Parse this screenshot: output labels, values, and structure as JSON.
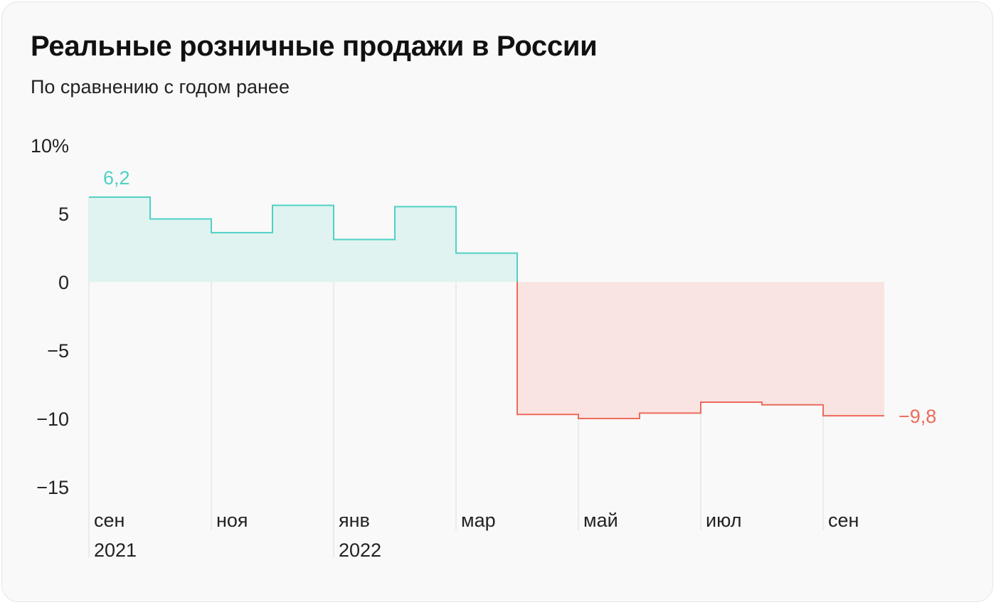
{
  "header": {
    "title": "Реальные розничные продажи в России",
    "subtitle": "По сравнению с годом ранее"
  },
  "colors": {
    "positive_line": "#4fd1c5",
    "positive_fill": "#e0f3f0",
    "negative_line": "#ee6a5c",
    "negative_fill": "#f9e4e2",
    "gridline": "#dddddd",
    "axis_text": "#222222"
  },
  "chart_data": {
    "type": "area",
    "step": true,
    "title": "Реальные розничные продажи в России",
    "subtitle": "По сравнению с годом ранее",
    "unit": "%",
    "x": [
      "2021-09",
      "2021-10",
      "2021-11",
      "2021-12",
      "2022-01",
      "2022-02",
      "2022-03",
      "2022-04",
      "2022-05",
      "2022-06",
      "2022-07",
      "2022-08",
      "2022-09"
    ],
    "values": [
      6.2,
      4.6,
      3.6,
      5.6,
      3.1,
      5.5,
      2.1,
      -9.7,
      -10.0,
      -9.6,
      -8.8,
      -9.0,
      -9.8
    ],
    "ylim": [
      -17,
      10
    ],
    "yticks": [
      10,
      5,
      0,
      -5,
      -10,
      -15
    ],
    "ytick_labels": [
      "10%",
      "5",
      "0",
      "−5",
      "−10",
      "−15"
    ],
    "xticks": [
      {
        "month": "сен",
        "year": "2021",
        "index": 0
      },
      {
        "month": "ноя",
        "year": "",
        "index": 2
      },
      {
        "month": "янв",
        "year": "2022",
        "index": 4
      },
      {
        "month": "мар",
        "year": "",
        "index": 6
      },
      {
        "month": "май",
        "year": "",
        "index": 8
      },
      {
        "month": "июл",
        "year": "",
        "index": 10
      },
      {
        "month": "сен",
        "year": "",
        "index": 12
      }
    ],
    "annotations": [
      {
        "text": "6,2",
        "index": 0,
        "value": 6.2,
        "position": "above-start"
      },
      {
        "text": "−9,8",
        "index": 12,
        "value": -9.8,
        "position": "after-end"
      }
    ],
    "grid": "vertical-at-ticks",
    "legend": "none"
  }
}
